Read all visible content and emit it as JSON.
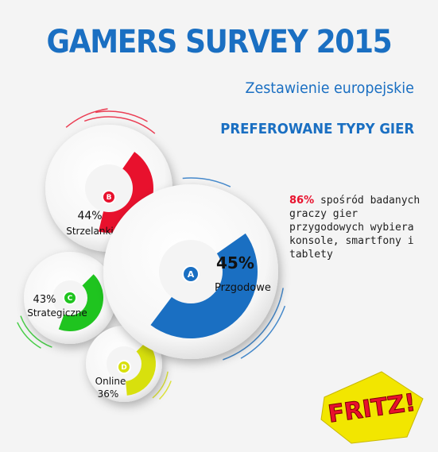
{
  "header": {
    "title": "GAMERS SURVEY 2015",
    "subtitle": "Zestawienie europejskie",
    "section_title": "PREFEROWANE TYPY GIER"
  },
  "note": {
    "highlight": "86%",
    "text": " spośród badanych graczy gier przygodowych wybiera konsole, smartfony i tablety"
  },
  "logo": {
    "text": "FRITZ!"
  },
  "chart_data": {
    "type": "pie",
    "title": "PREFEROWANE TYPY GIER",
    "series": [
      {
        "letter": "A",
        "name": "Przgodowe",
        "value": 45,
        "label": "45%",
        "color": "#1a6fc2"
      },
      {
        "letter": "B",
        "name": "Strzelanki",
        "value": 44,
        "label": "44%",
        "color": "#e8112d"
      },
      {
        "letter": "C",
        "name": "Strategiczne",
        "value": 43,
        "label": "43%",
        "color": "#1fc41f"
      },
      {
        "letter": "D",
        "name": "Online",
        "value": 36,
        "label": "36%",
        "color": "#d8e00d"
      }
    ]
  },
  "colors": {
    "accent": "#1a6fc2",
    "highlight": "#e8112d",
    "logo_yellow": "#f2e600"
  }
}
